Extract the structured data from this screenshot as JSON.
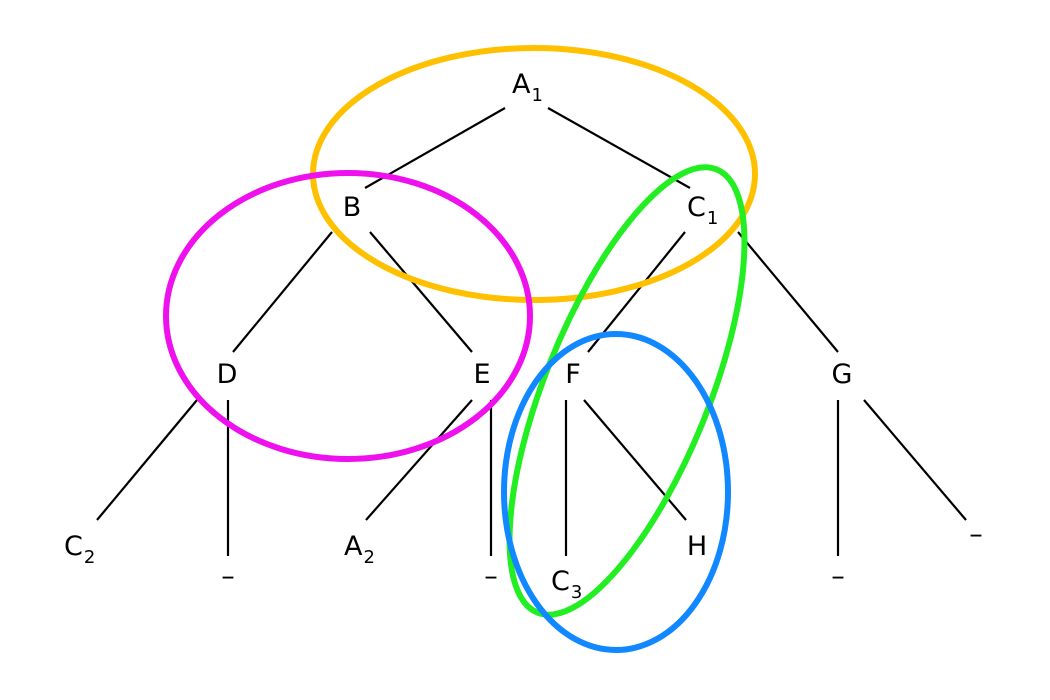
{
  "diagram": {
    "nodes": {
      "a1": {
        "main": "A",
        "sub": "1"
      },
      "b": {
        "main": "B"
      },
      "c1": {
        "main": "C",
        "sub": "1"
      },
      "d": {
        "main": "D"
      },
      "e": {
        "main": "E"
      },
      "f": {
        "main": "F"
      },
      "g": {
        "main": "G"
      },
      "c2": {
        "main": "C",
        "sub": "2"
      },
      "d_leaf": {
        "main": "–"
      },
      "a2": {
        "main": "A",
        "sub": "2"
      },
      "e_leaf": {
        "main": "–"
      },
      "c3": {
        "main": "C",
        "sub": "3"
      },
      "h": {
        "main": "H"
      },
      "g_leaf_left": {
        "main": "–"
      },
      "g_leaf_right": {
        "main": "–"
      }
    },
    "edges": [
      [
        "a1",
        "b"
      ],
      [
        "a1",
        "c1"
      ],
      [
        "b",
        "d"
      ],
      [
        "b",
        "e"
      ],
      [
        "c1",
        "f"
      ],
      [
        "c1",
        "g"
      ],
      [
        "d",
        "c2"
      ],
      [
        "d",
        "d_leaf"
      ],
      [
        "e",
        "a2"
      ],
      [
        "e",
        "e_leaf"
      ],
      [
        "f",
        "c3"
      ],
      [
        "f",
        "h"
      ],
      [
        "g",
        "g_leaf_left"
      ],
      [
        "g",
        "g_leaf_right"
      ]
    ],
    "rings": {
      "top_cluster": {
        "color": "#ffc000"
      },
      "left_cluster": {
        "color": "#ee11ee"
      },
      "diagonal_cluster": {
        "color": "#22ee22"
      },
      "bottom_cluster": {
        "color": "#1188ff"
      }
    }
  }
}
